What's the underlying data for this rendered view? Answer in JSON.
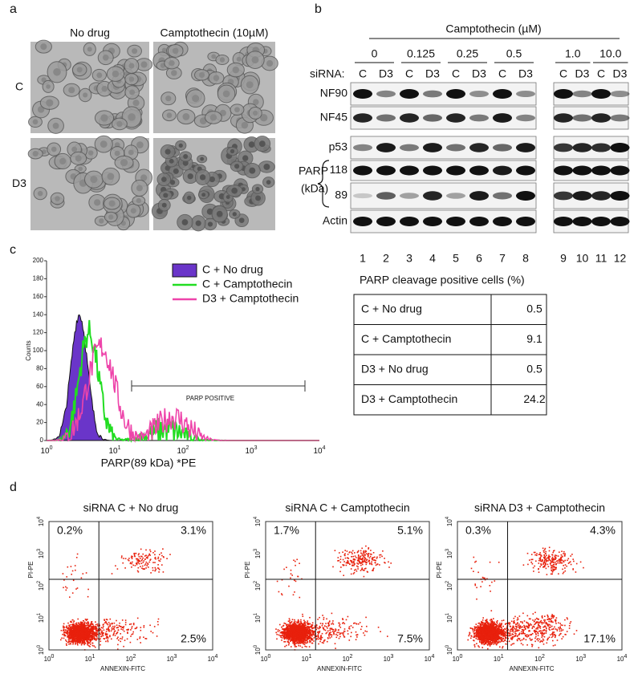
{
  "panels": {
    "a": {
      "label": "a",
      "columns": [
        "No drug",
        "Camptothecin (10µM)"
      ],
      "rows": [
        "C",
        "D3"
      ]
    },
    "b": {
      "label": "b",
      "treatment": "Camptothecin (µM)",
      "doses": [
        "0",
        "0.125",
        "0.25",
        "0.5",
        "1.0",
        "10.0"
      ],
      "sirna_label": "siRNA:",
      "sirna": [
        "C",
        "D3"
      ],
      "proteins": [
        "NF90",
        "NF45",
        "p53"
      ],
      "parp": "PARP",
      "parp_unit": "(kDa)",
      "parp_bands": [
        "118",
        "89"
      ],
      "actin": "Actin",
      "lanes": [
        "1",
        "2",
        "3",
        "4",
        "5",
        "6",
        "7",
        "8",
        "9",
        "10",
        "11",
        "12"
      ]
    },
    "c": {
      "label": "c",
      "legend": [
        "C + No drug",
        "C + Camptothecin",
        "D3 + Camptothecin"
      ],
      "y_label": "Counts",
      "x_label": "PARP(89 kDa) *PE",
      "yticks": [
        "0",
        "20",
        "40",
        "60",
        "80",
        "100",
        "120",
        "140",
        "160",
        "180",
        "200"
      ],
      "log_ticks": [
        {
          "base": "10",
          "exp": "0"
        },
        {
          "base": "10",
          "exp": "1"
        },
        {
          "base": "10",
          "exp": "2"
        },
        {
          "base": "10",
          "exp": "3"
        },
        {
          "base": "10",
          "exp": "4"
        }
      ],
      "gate": "PARP POSITIVE",
      "table": {
        "title": "PARP cleavage positive cells (%)",
        "rows": [
          [
            "C + No drug",
            "0.5"
          ],
          [
            "C + Camptothecin",
            "9.1"
          ],
          [
            "D3 + No drug",
            "0.5"
          ],
          [
            "D3 + Camptothecin",
            "24.2"
          ]
        ]
      }
    },
    "d": {
      "label": "d",
      "y_label": "PI-PE",
      "x_label": "ANNEXIN-FITC",
      "log_ticks": [
        {
          "base": "10",
          "exp": "0"
        },
        {
          "base": "10",
          "exp": "1"
        },
        {
          "base": "10",
          "exp": "2"
        },
        {
          "base": "10",
          "exp": "3"
        },
        {
          "base": "10",
          "exp": "4"
        }
      ],
      "plots": [
        {
          "title": "siRNA C + No drug",
          "quadrants": [
            "0.2%",
            "3.1%",
            "2.5%"
          ]
        },
        {
          "title": "siRNA C + Camptothecin",
          "quadrants": [
            "1.7%",
            "5.1%",
            "7.5%"
          ]
        },
        {
          "title": "siRNA D3 + Camptothecin",
          "quadrants": [
            "0.3%",
            "4.3%",
            "17.1%"
          ]
        }
      ]
    }
  }
}
